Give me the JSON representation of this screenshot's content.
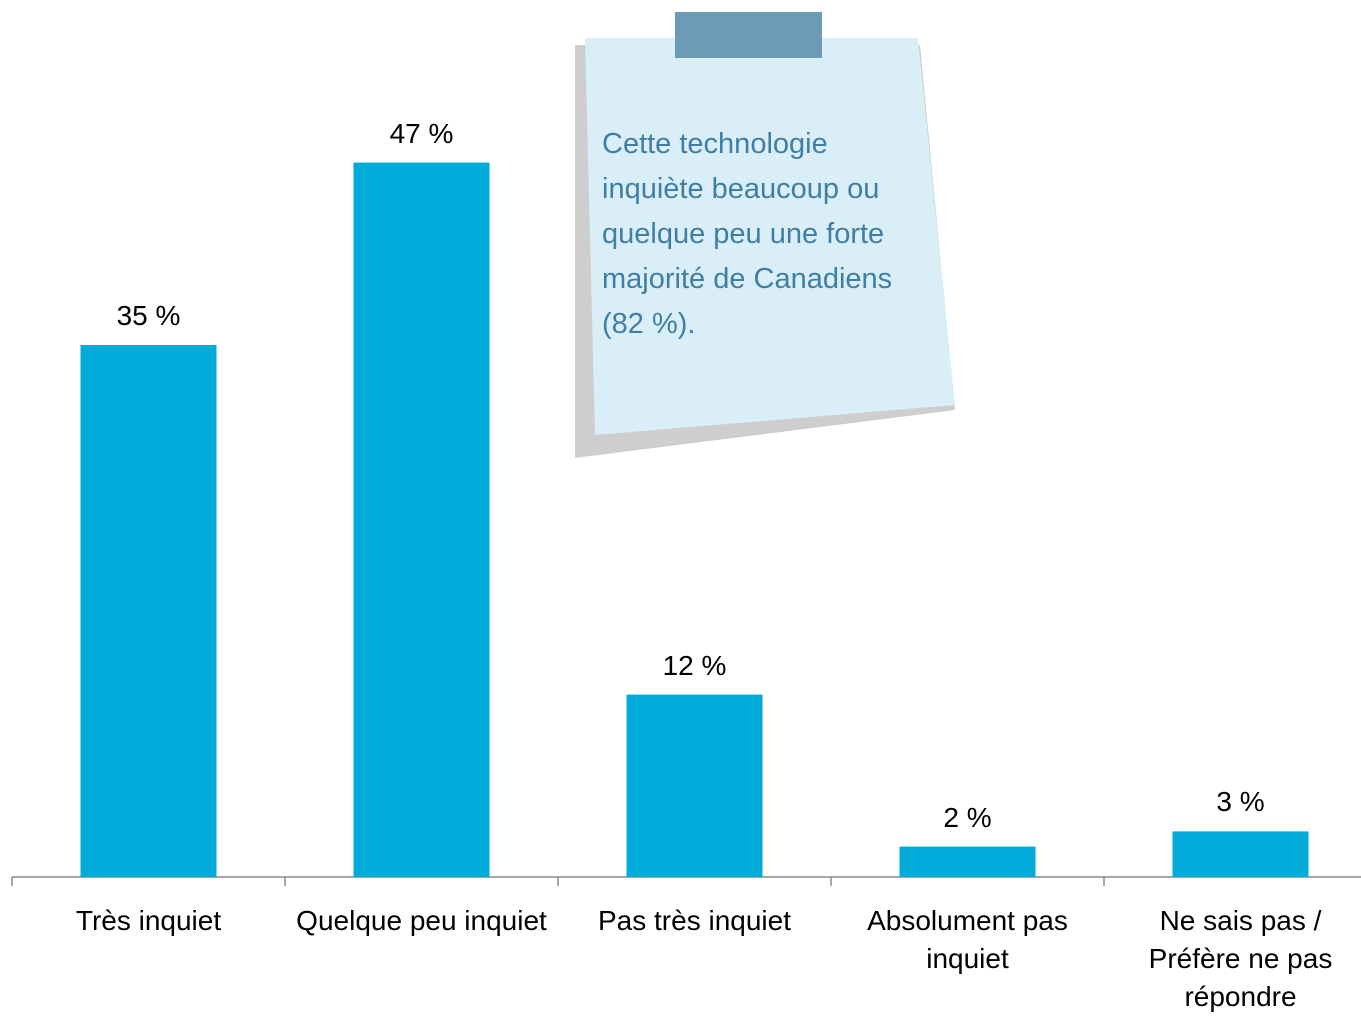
{
  "chart_data": {
    "type": "bar",
    "categories": [
      "Très inquiet",
      "Quelque peu inquiet",
      "Pas très inquiet",
      "Absolument pas inquiet",
      "Ne sais pas / Préfère ne pas répondre"
    ],
    "values": [
      35,
      47,
      12,
      2,
      3
    ],
    "value_labels": [
      "35 %",
      "47 %",
      "12 %",
      "2 %",
      "3 %"
    ],
    "color": "#00aad9",
    "annotation": "Cette technologie inquiète beaucoup ou quelque peu une forte majorité de Canadiens (82 %)."
  }
}
